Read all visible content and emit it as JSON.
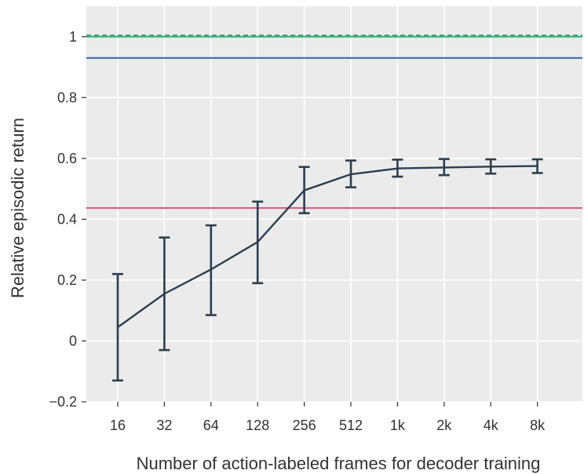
{
  "chart_data": {
    "type": "line",
    "title": "",
    "xlabel": "Number of action-labeled frames for decoder training",
    "ylabel": "Relative episodic return",
    "categories": [
      "16",
      "32",
      "64",
      "128",
      "256",
      "512",
      "1k",
      "2k",
      "4k",
      "8k"
    ],
    "ylim": [
      -0.2,
      1.1
    ],
    "yticks": [
      -0.2,
      0,
      0.2,
      0.4,
      0.6,
      0.8,
      1
    ],
    "ytick_labels": [
      "−0.2",
      "0",
      "0.2",
      "0.4",
      "0.6",
      "0.8",
      "1"
    ],
    "grid": true,
    "series": [
      {
        "color": "#2c3e50",
        "values": [
          0.045,
          0.155,
          0.235,
          0.325,
          0.495,
          0.548,
          0.567,
          0.57,
          0.573,
          0.575
        ],
        "error_low": [
          -0.13,
          -0.03,
          0.085,
          0.19,
          0.42,
          0.505,
          0.54,
          0.545,
          0.55,
          0.552
        ],
        "error_high": [
          0.22,
          0.34,
          0.38,
          0.458,
          0.572,
          0.593,
          0.596,
          0.598,
          0.597,
          0.597
        ]
      }
    ],
    "reference_lines": [
      {
        "y": 1.0,
        "color": "#2e8b57",
        "style": "dashed"
      },
      {
        "y": 1.0,
        "color": "#3cb38a",
        "style": "solid"
      },
      {
        "y": 0.93,
        "color": "#4c72b0",
        "style": "solid"
      },
      {
        "y": 0.437,
        "color": "#d95f87",
        "style": "solid"
      }
    ],
    "colors": {
      "background": "#ebebeb",
      "grid": "#ffffff",
      "axis": "#333333"
    }
  }
}
